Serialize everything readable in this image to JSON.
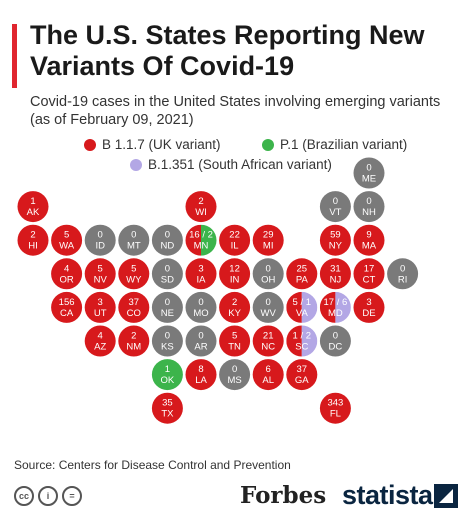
{
  "title": "The U.S. States Reporting New Variants Of Covid-19",
  "subtitle": "Covid-19 cases in the United States involving emerging variants (as of February 09, 2021)",
  "legend": [
    {
      "label": "B 1.1.7 (UK variant)",
      "color": "#d7191c"
    },
    {
      "label": "P.1 (Brazilian variant)",
      "color": "#3cb44b"
    },
    {
      "label": "B.1.351 (South African variant)",
      "color": "#b3a7e5"
    }
  ],
  "colors": {
    "uk": "#d7191c",
    "brazil": "#3cb44b",
    "south_africa": "#b3a7e5",
    "none": "#7a7a7a",
    "accent": "#e0262f"
  },
  "chart_data": {
    "type": "tile-map",
    "unit": "cases",
    "states": [
      {
        "abbr": "ME",
        "label": "0",
        "uk": 0,
        "col": 10,
        "row": 0
      },
      {
        "abbr": "AK",
        "label": "1",
        "uk": 1,
        "col": 0,
        "row": 1
      },
      {
        "abbr": "WI",
        "label": "2",
        "uk": 2,
        "col": 5,
        "row": 1
      },
      {
        "abbr": "VT",
        "label": "0",
        "uk": 0,
        "col": 9,
        "row": 1
      },
      {
        "abbr": "NH",
        "label": "0",
        "uk": 0,
        "col": 10,
        "row": 1
      },
      {
        "abbr": "HI",
        "label": "2",
        "uk": 2,
        "col": 0,
        "row": 2
      },
      {
        "abbr": "WA",
        "label": "5",
        "uk": 5,
        "col": 1,
        "row": 2
      },
      {
        "abbr": "ID",
        "label": "0",
        "uk": 0,
        "col": 2,
        "row": 2
      },
      {
        "abbr": "MT",
        "label": "0",
        "uk": 0,
        "col": 3,
        "row": 2
      },
      {
        "abbr": "ND",
        "label": "0",
        "uk": 0,
        "col": 4,
        "row": 2
      },
      {
        "abbr": "MN",
        "label": "16 / 2",
        "uk": 16,
        "brazil": 2,
        "col": 5,
        "row": 2
      },
      {
        "abbr": "IL",
        "label": "22",
        "uk": 22,
        "col": 6,
        "row": 2
      },
      {
        "abbr": "MI",
        "label": "29",
        "uk": 29,
        "col": 7,
        "row": 2
      },
      {
        "abbr": "NY",
        "label": "59",
        "uk": 59,
        "col": 9,
        "row": 2
      },
      {
        "abbr": "MA",
        "label": "9",
        "uk": 9,
        "col": 10,
        "row": 2
      },
      {
        "abbr": "OR",
        "label": "4",
        "uk": 4,
        "col": 1,
        "row": 3
      },
      {
        "abbr": "NV",
        "label": "5",
        "uk": 5,
        "col": 2,
        "row": 3
      },
      {
        "abbr": "WY",
        "label": "5",
        "uk": 5,
        "col": 3,
        "row": 3
      },
      {
        "abbr": "SD",
        "label": "0",
        "uk": 0,
        "col": 4,
        "row": 3
      },
      {
        "abbr": "IA",
        "label": "3",
        "uk": 3,
        "col": 5,
        "row": 3
      },
      {
        "abbr": "IN",
        "label": "12",
        "uk": 12,
        "col": 6,
        "row": 3
      },
      {
        "abbr": "OH",
        "label": "0",
        "uk": 0,
        "col": 7,
        "row": 3
      },
      {
        "abbr": "PA",
        "label": "25",
        "uk": 25,
        "col": 8,
        "row": 3
      },
      {
        "abbr": "NJ",
        "label": "31",
        "uk": 31,
        "col": 9,
        "row": 3
      },
      {
        "abbr": "CT",
        "label": "17",
        "uk": 17,
        "col": 10,
        "row": 3
      },
      {
        "abbr": "RI",
        "label": "0",
        "uk": 0,
        "col": 11,
        "row": 3
      },
      {
        "abbr": "CA",
        "label": "156",
        "uk": 156,
        "col": 1,
        "row": 4
      },
      {
        "abbr": "UT",
        "label": "3",
        "uk": 3,
        "col": 2,
        "row": 4
      },
      {
        "abbr": "CO",
        "label": "37",
        "uk": 37,
        "col": 3,
        "row": 4
      },
      {
        "abbr": "NE",
        "label": "0",
        "uk": 0,
        "col": 4,
        "row": 4
      },
      {
        "abbr": "MO",
        "label": "0",
        "uk": 0,
        "col": 5,
        "row": 4
      },
      {
        "abbr": "KY",
        "label": "2",
        "uk": 2,
        "col": 6,
        "row": 4
      },
      {
        "abbr": "WV",
        "label": "0",
        "uk": 0,
        "col": 7,
        "row": 4
      },
      {
        "abbr": "VA",
        "label": "5 / 1",
        "uk": 5,
        "south_africa": 1,
        "col": 8,
        "row": 4
      },
      {
        "abbr": "MD",
        "label": "17 / 6",
        "uk": 17,
        "south_africa": 6,
        "col": 9,
        "row": 4
      },
      {
        "abbr": "DE",
        "label": "3",
        "uk": 3,
        "col": 10,
        "row": 4
      },
      {
        "abbr": "AZ",
        "label": "4",
        "uk": 4,
        "col": 2,
        "row": 5
      },
      {
        "abbr": "NM",
        "label": "2",
        "uk": 2,
        "col": 3,
        "row": 5
      },
      {
        "abbr": "KS",
        "label": "0",
        "uk": 0,
        "col": 4,
        "row": 5
      },
      {
        "abbr": "AR",
        "label": "0",
        "uk": 0,
        "col": 5,
        "row": 5
      },
      {
        "abbr": "TN",
        "label": "5",
        "uk": 5,
        "col": 6,
        "row": 5
      },
      {
        "abbr": "NC",
        "label": "21",
        "uk": 21,
        "col": 7,
        "row": 5
      },
      {
        "abbr": "SC",
        "label": "1 / 2",
        "uk": 1,
        "south_africa": 2,
        "col": 8,
        "row": 5
      },
      {
        "abbr": "DC",
        "label": "0",
        "uk": 0,
        "col": 9,
        "row": 5
      },
      {
        "abbr": "OK",
        "label": "1",
        "uk": 0,
        "brazil": 1,
        "col": 4,
        "row": 6
      },
      {
        "abbr": "LA",
        "label": "8",
        "uk": 8,
        "col": 5,
        "row": 6
      },
      {
        "abbr": "MS",
        "label": "0",
        "uk": 0,
        "col": 6,
        "row": 6
      },
      {
        "abbr": "AL",
        "label": "6",
        "uk": 6,
        "col": 7,
        "row": 6
      },
      {
        "abbr": "GA",
        "label": "37",
        "uk": 37,
        "col": 8,
        "row": 6
      },
      {
        "abbr": "TX",
        "label": "35",
        "uk": 35,
        "col": 4,
        "row": 7
      },
      {
        "abbr": "FL",
        "label": "343",
        "uk": 343,
        "col": 9,
        "row": 7
      }
    ]
  },
  "source": "Source: Centers for Disease Control and Prevention",
  "footer": {
    "cc_icons": [
      "cc",
      "i",
      "="
    ],
    "forbes": "Forbes",
    "statista": "statista"
  }
}
